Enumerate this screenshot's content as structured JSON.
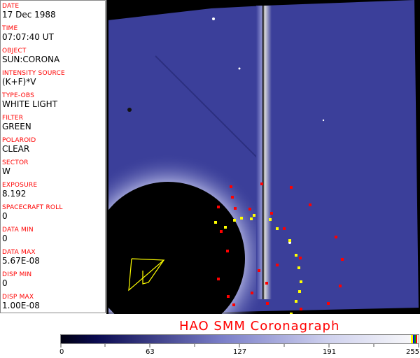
{
  "fields": [
    {
      "label": "DATE",
      "value": "17 Dec 1988"
    },
    {
      "label": "TIME",
      "value": "07:07:40 UT"
    },
    {
      "label": "OBJECT",
      "value": "SUN:CORONA"
    },
    {
      "label": "INTENSITY SOURCE",
      "value": "(K+F)*V"
    },
    {
      "label": "TYPE-OBS",
      "value": "WHITE LIGHT"
    },
    {
      "label": "FILTER",
      "value": "GREEN"
    },
    {
      "label": "POLAROID",
      "value": "CLEAR"
    },
    {
      "label": "SECTOR",
      "value": "W"
    },
    {
      "label": "EXPOSURE",
      "value": "8.192"
    },
    {
      "label": "SPACECRAFT ROLL",
      "value": "0"
    },
    {
      "label": "DATA MIN",
      "value": "0"
    },
    {
      "label": "DATA MAX",
      "value": "5.67E-08"
    },
    {
      "label": "DISP MIN",
      "value": "0"
    },
    {
      "label": "DISP MAX",
      "value": "1.00E-08"
    }
  ],
  "title": "HAO   SMM Coronagraph",
  "colorbar": {
    "ticks": [
      "0",
      "63",
      "127",
      "191",
      "255"
    ],
    "colors": {
      "low": "#000010",
      "mid": "#3b3f9a",
      "high": "#ffffff"
    }
  },
  "colors": {
    "label": "#ff0000",
    "image_blue": "#3b3f9a"
  }
}
